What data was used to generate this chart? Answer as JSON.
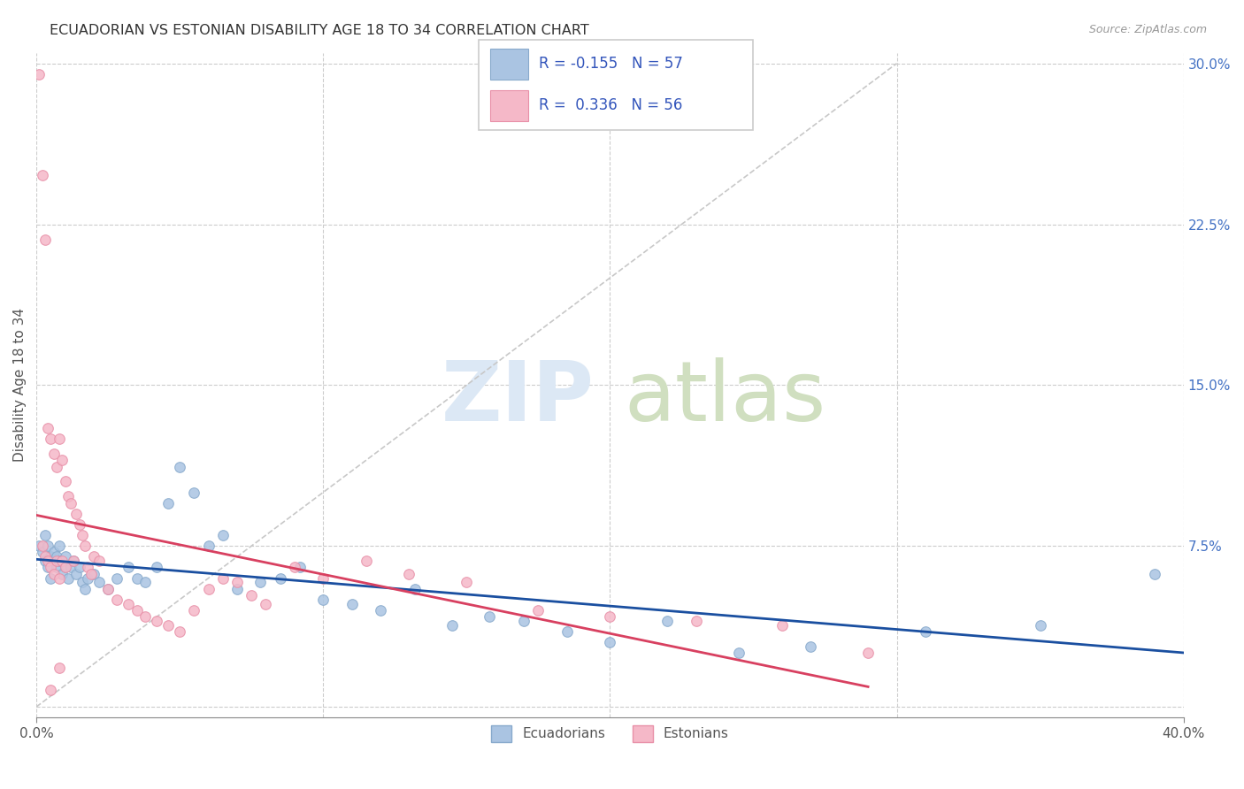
{
  "title": "ECUADORIAN VS ESTONIAN DISABILITY AGE 18 TO 34 CORRELATION CHART",
  "source": "Source: ZipAtlas.com",
  "ylabel": "Disability Age 18 to 34",
  "xlim": [
    0.0,
    0.4
  ],
  "ylim": [
    -0.02,
    0.32
  ],
  "plot_ylim": [
    0.0,
    0.3
  ],
  "xticks": [
    0.0,
    0.4
  ],
  "xtick_labels": [
    "0.0%",
    "40.0%"
  ],
  "yticks": [
    0.0,
    0.075,
    0.15,
    0.225,
    0.3
  ],
  "ytick_labels_right": [
    "",
    "7.5%",
    "15.0%",
    "22.5%",
    "30.0%"
  ],
  "blue_R": -0.155,
  "blue_N": 57,
  "pink_R": 0.336,
  "pink_N": 56,
  "blue_color": "#aac4e2",
  "blue_edge_color": "#88aacc",
  "pink_color": "#f5b8c8",
  "pink_edge_color": "#e890a8",
  "blue_line_color": "#1a4fa0",
  "pink_line_color": "#d84060",
  "diag_color": "#c8c8c8",
  "dot_size": 70,
  "blue_x": [
    0.001,
    0.002,
    0.003,
    0.003,
    0.004,
    0.004,
    0.005,
    0.005,
    0.006,
    0.006,
    0.007,
    0.007,
    0.008,
    0.008,
    0.009,
    0.01,
    0.01,
    0.011,
    0.012,
    0.013,
    0.014,
    0.015,
    0.016,
    0.017,
    0.018,
    0.02,
    0.022,
    0.025,
    0.028,
    0.032,
    0.035,
    0.038,
    0.042,
    0.046,
    0.05,
    0.055,
    0.06,
    0.065,
    0.07,
    0.078,
    0.085,
    0.092,
    0.1,
    0.11,
    0.12,
    0.132,
    0.145,
    0.158,
    0.17,
    0.185,
    0.2,
    0.22,
    0.245,
    0.27,
    0.31,
    0.35,
    0.39
  ],
  "blue_y": [
    0.075,
    0.072,
    0.068,
    0.08,
    0.065,
    0.075,
    0.07,
    0.06,
    0.068,
    0.072,
    0.065,
    0.07,
    0.068,
    0.075,
    0.062,
    0.065,
    0.07,
    0.06,
    0.065,
    0.068,
    0.062,
    0.065,
    0.058,
    0.055,
    0.06,
    0.062,
    0.058,
    0.055,
    0.06,
    0.065,
    0.06,
    0.058,
    0.065,
    0.095,
    0.112,
    0.1,
    0.075,
    0.08,
    0.055,
    0.058,
    0.06,
    0.065,
    0.05,
    0.048,
    0.045,
    0.055,
    0.038,
    0.042,
    0.04,
    0.035,
    0.03,
    0.04,
    0.025,
    0.028,
    0.035,
    0.038,
    0.062
  ],
  "pink_x": [
    0.001,
    0.002,
    0.002,
    0.003,
    0.003,
    0.004,
    0.004,
    0.005,
    0.005,
    0.006,
    0.006,
    0.007,
    0.007,
    0.008,
    0.008,
    0.009,
    0.009,
    0.01,
    0.01,
    0.011,
    0.012,
    0.013,
    0.014,
    0.015,
    0.016,
    0.017,
    0.018,
    0.019,
    0.02,
    0.022,
    0.025,
    0.028,
    0.032,
    0.035,
    0.038,
    0.042,
    0.046,
    0.05,
    0.055,
    0.06,
    0.065,
    0.07,
    0.075,
    0.08,
    0.09,
    0.1,
    0.115,
    0.13,
    0.15,
    0.175,
    0.2,
    0.23,
    0.26,
    0.29,
    0.005,
    0.008
  ],
  "pink_y": [
    0.295,
    0.248,
    0.075,
    0.218,
    0.07,
    0.13,
    0.068,
    0.125,
    0.065,
    0.118,
    0.062,
    0.112,
    0.068,
    0.125,
    0.06,
    0.115,
    0.068,
    0.105,
    0.065,
    0.098,
    0.095,
    0.068,
    0.09,
    0.085,
    0.08,
    0.075,
    0.065,
    0.062,
    0.07,
    0.068,
    0.055,
    0.05,
    0.048,
    0.045,
    0.042,
    0.04,
    0.038,
    0.035,
    0.045,
    0.055,
    0.06,
    0.058,
    0.052,
    0.048,
    0.065,
    0.06,
    0.068,
    0.062,
    0.058,
    0.045,
    0.042,
    0.04,
    0.038,
    0.025,
    0.008,
    0.018
  ]
}
